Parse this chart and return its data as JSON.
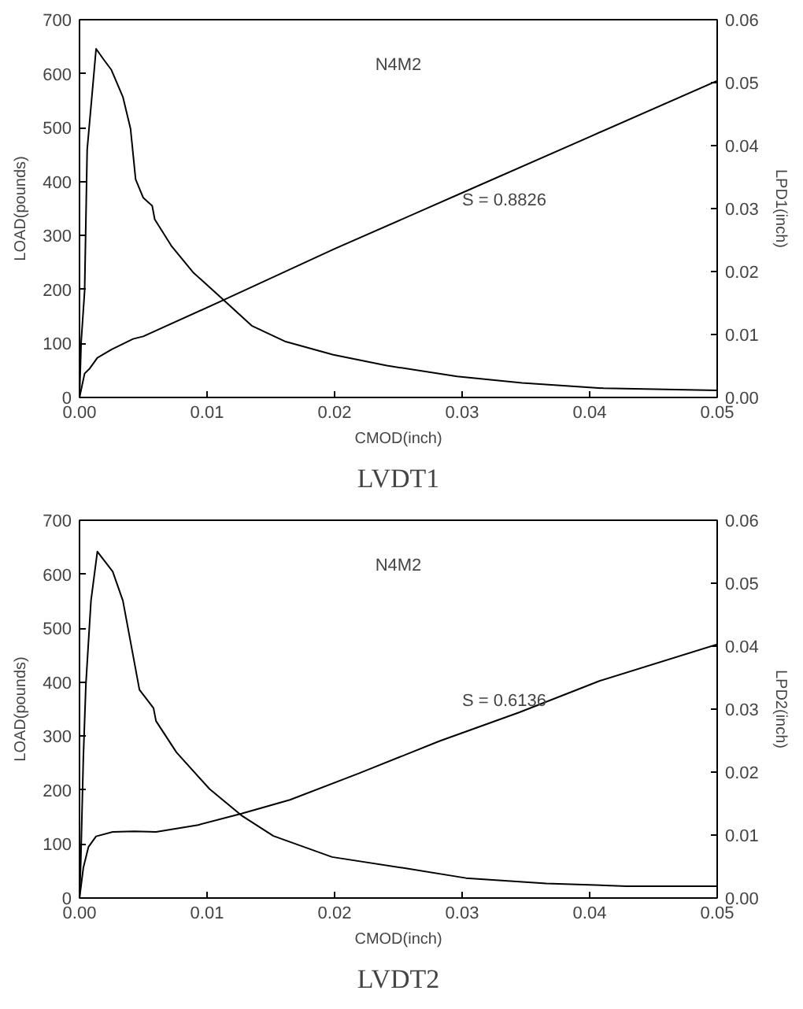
{
  "chart_data": [
    {
      "type": "line",
      "title": "LVDT1",
      "xlabel": "CMOD(inch)",
      "ylabel": "LOAD(pounds)",
      "y2label": "LPD1(inch)",
      "annotations": [
        "N4M2",
        "S = 0.8826"
      ],
      "grid": false,
      "xlim": [
        0,
        0.05
      ],
      "xticks": [
        {
          "value": 0,
          "label": "0.00"
        },
        0.01,
        0.02,
        0.03,
        0.04,
        0.05
      ],
      "ylim": [
        0,
        700
      ],
      "yticks": [
        0,
        100,
        200,
        300,
        400,
        500,
        600,
        700
      ],
      "y2lim": [
        0,
        0.06
      ],
      "y2ticks": [
        {
          "value": 0,
          "label": "0.00"
        },
        0.01,
        0.02,
        0.03,
        0.04,
        0.05,
        0.06
      ],
      "series": [
        {
          "color": "#000000",
          "x": [
            0,
            0.00013,
            0.0004,
            0.0006,
            0.0013,
            0.0019,
            0.0025,
            0.0034,
            0.004,
            0.0044,
            0.005,
            0.0057,
            0.0059,
            0.0072,
            0.0089,
            0.011,
            0.0135,
            0.0161,
            0.0199,
            0.0241,
            0.0296,
            0.0347,
            0.0411,
            0.05
          ],
          "values": [
            0,
            103,
            197,
            459,
            646,
            626,
            607,
            557,
            498,
            404,
            370,
            355,
            330,
            281,
            232,
            187,
            133,
            104,
            79,
            59,
            39,
            27,
            17,
            13
          ]
        },
        {
          "color": "#000000",
          "axis": "y2",
          "x": [
            0,
            0.0004,
            0.0008,
            0.0014,
            0.0025,
            0.0042,
            0.005,
            0.011,
            0.02,
            0.03,
            0.04,
            0.05
          ],
          "values": [
            0,
            0.0038,
            0.0046,
            0.0063,
            0.0076,
            0.0093,
            0.0097,
            0.0152,
            0.0236,
            0.0325,
            0.0414,
            0.0503
          ]
        }
      ]
    },
    {
      "type": "line",
      "title": "LVDT2",
      "xlabel": "CMOD(inch)",
      "ylabel": "LOAD(pounds)",
      "y2label": "LPD2(inch)",
      "annotations": [
        "N4M2",
        "S = 0.6136"
      ],
      "grid": false,
      "xlim": [
        0,
        0.05
      ],
      "xticks": [
        {
          "value": 0,
          "label": "0.00"
        },
        0.01,
        0.02,
        0.03,
        0.04,
        0.05
      ],
      "ylim": [
        0,
        700
      ],
      "yticks": [
        0,
        100,
        200,
        300,
        400,
        500,
        600,
        700
      ],
      "y2lim": [
        0,
        0.06
      ],
      "y2ticks": [
        {
          "value": 0,
          "label": "0.00"
        },
        0.01,
        0.02,
        0.03,
        0.04,
        0.05,
        0.06
      ],
      "series": [
        {
          "color": "#000000",
          "x": [
            0,
            0.0001,
            0.0003,
            0.0005,
            0.0009,
            0.0014,
            0.0026,
            0.0034,
            0.0047,
            0.0058,
            0.006,
            0.0076,
            0.0102,
            0.0127,
            0.0152,
            0.0198,
            0.0253,
            0.0303,
            0.0366,
            0.0429,
            0.05
          ],
          "values": [
            0,
            66,
            260,
            396,
            551,
            642,
            605,
            551,
            386,
            352,
            328,
            270,
            202,
            153,
            115,
            76,
            56,
            37,
            27,
            22,
            22
          ]
        },
        {
          "color": "#000000",
          "axis": "y2",
          "x": [
            0,
            0.0003,
            0.0007,
            0.0013,
            0.0026,
            0.0043,
            0.006,
            0.0093,
            0.0127,
            0.0165,
            0.0219,
            0.0282,
            0.0345,
            0.0408,
            0.05
          ],
          "values": [
            0,
            0.0048,
            0.0081,
            0.0098,
            0.0105,
            0.0106,
            0.0105,
            0.0116,
            0.0134,
            0.0156,
            0.0198,
            0.0249,
            0.0295,
            0.0345,
            0.0403
          ]
        }
      ]
    }
  ]
}
